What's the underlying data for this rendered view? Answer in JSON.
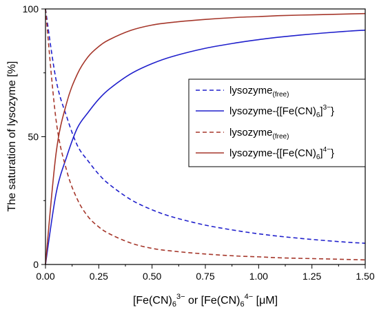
{
  "chart_data": {
    "type": "line",
    "xlabel": {
      "pre": "[Fe(CN)",
      "sub1": "6",
      "sup1": "3−",
      "mid": " or [Fe(CN)",
      "sub2": "6",
      "sup2": "4−",
      "post": " [μM]"
    },
    "ylabel": "The saturation of lysozyme [%]",
    "xlim": [
      0,
      1.5
    ],
    "ylim": [
      0,
      100
    ],
    "xticks": [
      0,
      0.25,
      0.5,
      0.75,
      1.0,
      1.25,
      1.5
    ],
    "xtick_labels": [
      "0.00",
      "0.25",
      "0.50",
      "0.75",
      "1.00",
      "1.25",
      "1.50"
    ],
    "yticks": [
      0,
      50,
      100
    ],
    "ytick_labels": [
      "0",
      "50",
      "100"
    ],
    "grid": false,
    "legend_position": "center-right",
    "x": [
      0,
      0.05,
      0.1,
      0.15,
      0.2,
      0.25,
      0.3,
      0.4,
      0.5,
      0.6,
      0.75,
      0.9,
      1.0,
      1.1,
      1.25,
      1.4,
      1.5
    ],
    "series": [
      {
        "name": {
          "main": "lysozyme",
          "sub": "(free)"
        },
        "color": "#1f1fcc",
        "dash": true,
        "values": [
          100,
          72.1,
          57.7,
          46.5,
          40.5,
          35.3,
          31.3,
          25.4,
          21.4,
          18.5,
          15.4,
          13.2,
          12.0,
          11.0,
          9.8,
          8.8,
          8.3
        ]
      },
      {
        "name": {
          "main": "lysozyme-{[Fe(CN)",
          "sub": "6",
          "post": "]",
          "sup": "3−",
          "end": "}"
        },
        "color": "#1f1fcc",
        "dash": false,
        "values": [
          0,
          27.9,
          42.3,
          53.5,
          59.5,
          64.7,
          68.7,
          74.6,
          78.6,
          81.5,
          84.6,
          86.8,
          88.0,
          89.0,
          90.2,
          91.2,
          91.7
        ]
      },
      {
        "name": {
          "main": "lysozyme",
          "sub": "(free)"
        },
        "color": "#a5362a",
        "dash": true,
        "values": [
          100,
          56.3,
          36.6,
          25.4,
          18.7,
          14.7,
          12.0,
          8.4,
          6.3,
          5.2,
          4.1,
          3.3,
          3.0,
          2.6,
          2.3,
          2.0,
          1.8
        ]
      },
      {
        "name": {
          "main": "lysozyme-{[Fe(CN)",
          "sub": "6",
          "post": "]",
          "sup": "4−",
          "end": "}"
        },
        "color": "#a5362a",
        "dash": false,
        "values": [
          0,
          43.7,
          63.4,
          74.6,
          81.3,
          85.3,
          88.0,
          91.6,
          93.7,
          94.8,
          95.9,
          96.7,
          97.0,
          97.4,
          97.7,
          98.0,
          98.2
        ]
      }
    ]
  }
}
